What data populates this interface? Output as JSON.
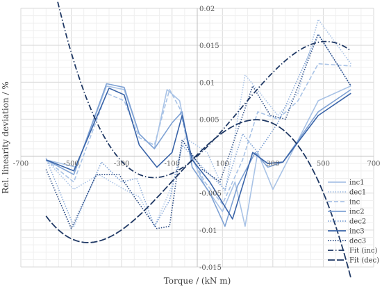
{
  "chart_data": {
    "type": "line",
    "title": "",
    "xlabel": "Torque / (kN m)",
    "ylabel": "Rel. linearity deviation / %",
    "xlim": [
      -700,
      700
    ],
    "ylim": [
      -0.015,
      0.02
    ],
    "x_ticks": [
      -700,
      -500,
      -300,
      -100,
      100,
      300,
      500,
      700
    ],
    "y_ticks": [
      -0.015,
      -0.01,
      -0.005,
      0,
      0.005,
      0.01,
      0.015,
      0.02
    ],
    "x_tick_labels": [
      "-700",
      "-500",
      "-300",
      "-100",
      "100",
      "300",
      "500",
      "700"
    ],
    "y_tick_labels": [
      "-0.015",
      "-0.01",
      "-0.005",
      "",
      "0.005",
      "0.01",
      "0.015",
      "0.02"
    ],
    "grid": true,
    "legend_position": "right",
    "series": [
      {
        "name": "inc1",
        "color": "#a9c3e6",
        "style": "solid",
        "points": [
          [
            -600,
            -0.0005
          ],
          [
            -480,
            -0.0015
          ],
          [
            -360,
            0.0095
          ],
          [
            -290,
            0.009
          ],
          [
            -230,
            0.003
          ],
          [
            -170,
            0.001
          ],
          [
            -120,
            0.009
          ],
          [
            -70,
            0.0075
          ],
          [
            -30,
            0.0005
          ],
          [
            30,
            -0.004
          ],
          [
            100,
            -0.0075
          ],
          [
            150,
            -0.0035
          ],
          [
            190,
            -0.0095
          ],
          [
            240,
            0.0005
          ],
          [
            300,
            -0.0045
          ],
          [
            480,
            0.0075
          ],
          [
            610,
            0.0095
          ]
        ]
      },
      {
        "name": "dec1",
        "color": "#a9c3e6",
        "style": "dot",
        "points": [
          [
            -600,
            -0.0005
          ],
          [
            -490,
            -0.0045
          ],
          [
            -390,
            -0.0025
          ],
          [
            -290,
            -0.0045
          ],
          [
            -230,
            -0.0055
          ],
          [
            -170,
            -0.0095
          ],
          [
            -100,
            -0.004
          ],
          [
            -50,
            0.0025
          ],
          [
            40,
            0.0005
          ],
          [
            110,
            -0.005
          ],
          [
            190,
            0.011
          ],
          [
            250,
            0.0085
          ],
          [
            320,
            0.0055
          ],
          [
            400,
            0.0085
          ],
          [
            480,
            0.0185
          ],
          [
            610,
            0.0125
          ]
        ]
      },
      {
        "name": "inc",
        "color": "#a9c3e6",
        "style": "dash",
        "points": [
          [
            -600,
            -0.0005
          ],
          [
            -490,
            -0.0035
          ],
          [
            -360,
            0.0085
          ],
          [
            -290,
            0.0075
          ],
          [
            -230,
            0.0025
          ],
          [
            -170,
            0.0015
          ],
          [
            -110,
            0.009
          ],
          [
            -70,
            0.0065
          ],
          [
            -30,
            0.0005
          ],
          [
            30,
            -0.0035
          ],
          [
            100,
            -0.0065
          ],
          [
            180,
            -0.0005
          ],
          [
            240,
            0.006
          ],
          [
            320,
            0.005
          ],
          [
            400,
            0.0075
          ],
          [
            480,
            0.0125
          ],
          [
            610,
            0.0122
          ]
        ]
      },
      {
        "name": "inc2",
        "color": "#7fa2d4",
        "style": "solid",
        "points": [
          [
            -600,
            -0.0005
          ],
          [
            -490,
            -0.0025
          ],
          [
            -360,
            0.0098
          ],
          [
            -290,
            0.0093
          ],
          [
            -230,
            0.003
          ],
          [
            -170,
            0.001
          ],
          [
            -100,
            0.0045
          ],
          [
            -60,
            0.006
          ],
          [
            -20,
            -0.0015
          ],
          [
            50,
            -0.005
          ],
          [
            110,
            -0.0095
          ],
          [
            160,
            -0.004
          ],
          [
            230,
            0.0005
          ],
          [
            280,
            -0.0015
          ],
          [
            340,
            -0.0008
          ],
          [
            480,
            0.006
          ],
          [
            610,
            0.009
          ]
        ]
      },
      {
        "name": "dec2",
        "color": "#7fa2d4",
        "style": "dot",
        "points": [
          [
            -600,
            -0.0003
          ],
          [
            -490,
            -0.0095
          ],
          [
            -380,
            -0.0008
          ],
          [
            -300,
            -0.0035
          ],
          [
            -240,
            -0.003
          ],
          [
            -170,
            -0.0095
          ],
          [
            -110,
            -0.006
          ],
          [
            -60,
            0.0015
          ],
          [
            20,
            -0.0015
          ],
          [
            110,
            -0.0045
          ],
          [
            180,
            0.003
          ],
          [
            240,
            0.0005
          ],
          [
            320,
            0.0045
          ],
          [
            400,
            0.0105
          ],
          [
            480,
            0.0165
          ],
          [
            610,
            0.0095
          ]
        ]
      },
      {
        "name": "inc3",
        "color": "#3a64a8",
        "style": "solid",
        "points": [
          [
            -600,
            -0.0005
          ],
          [
            -490,
            -0.002
          ],
          [
            -350,
            0.0092
          ],
          [
            -290,
            0.0083
          ],
          [
            -230,
            0.0015
          ],
          [
            -160,
            -0.0015
          ],
          [
            -100,
            0.0005
          ],
          [
            -60,
            0.0055
          ],
          [
            -20,
            -0.0005
          ],
          [
            50,
            -0.0035
          ],
          [
            140,
            -0.0085
          ],
          [
            220,
            0.0005
          ],
          [
            280,
            -0.001
          ],
          [
            340,
            -0.0008
          ],
          [
            480,
            0.0055
          ],
          [
            610,
            0.0085
          ]
        ]
      },
      {
        "name": "dec3",
        "color": "#2a4a82",
        "style": "dot",
        "points": [
          [
            -600,
            -0.0018
          ],
          [
            -500,
            -0.0098
          ],
          [
            -400,
            -0.0025
          ],
          [
            -310,
            -0.0025
          ],
          [
            -240,
            -0.006
          ],
          [
            -160,
            -0.0098
          ],
          [
            -110,
            -0.0095
          ],
          [
            -60,
            0.0022
          ],
          [
            20,
            -0.0018
          ],
          [
            90,
            -0.0035
          ],
          [
            160,
            0.0035
          ],
          [
            220,
            0.0095
          ],
          [
            290,
            0.0055
          ],
          [
            350,
            0.005
          ],
          [
            480,
            0.0165
          ],
          [
            610,
            0.0095
          ]
        ]
      },
      {
        "name": "Fit (inc)",
        "color": "#1f3864",
        "style": "dashdot",
        "fit": "cubic_inc"
      },
      {
        "name": "Fit (dec)",
        "color": "#1f3864",
        "style": "longdash",
        "fit": "cubic_dec"
      }
    ]
  }
}
